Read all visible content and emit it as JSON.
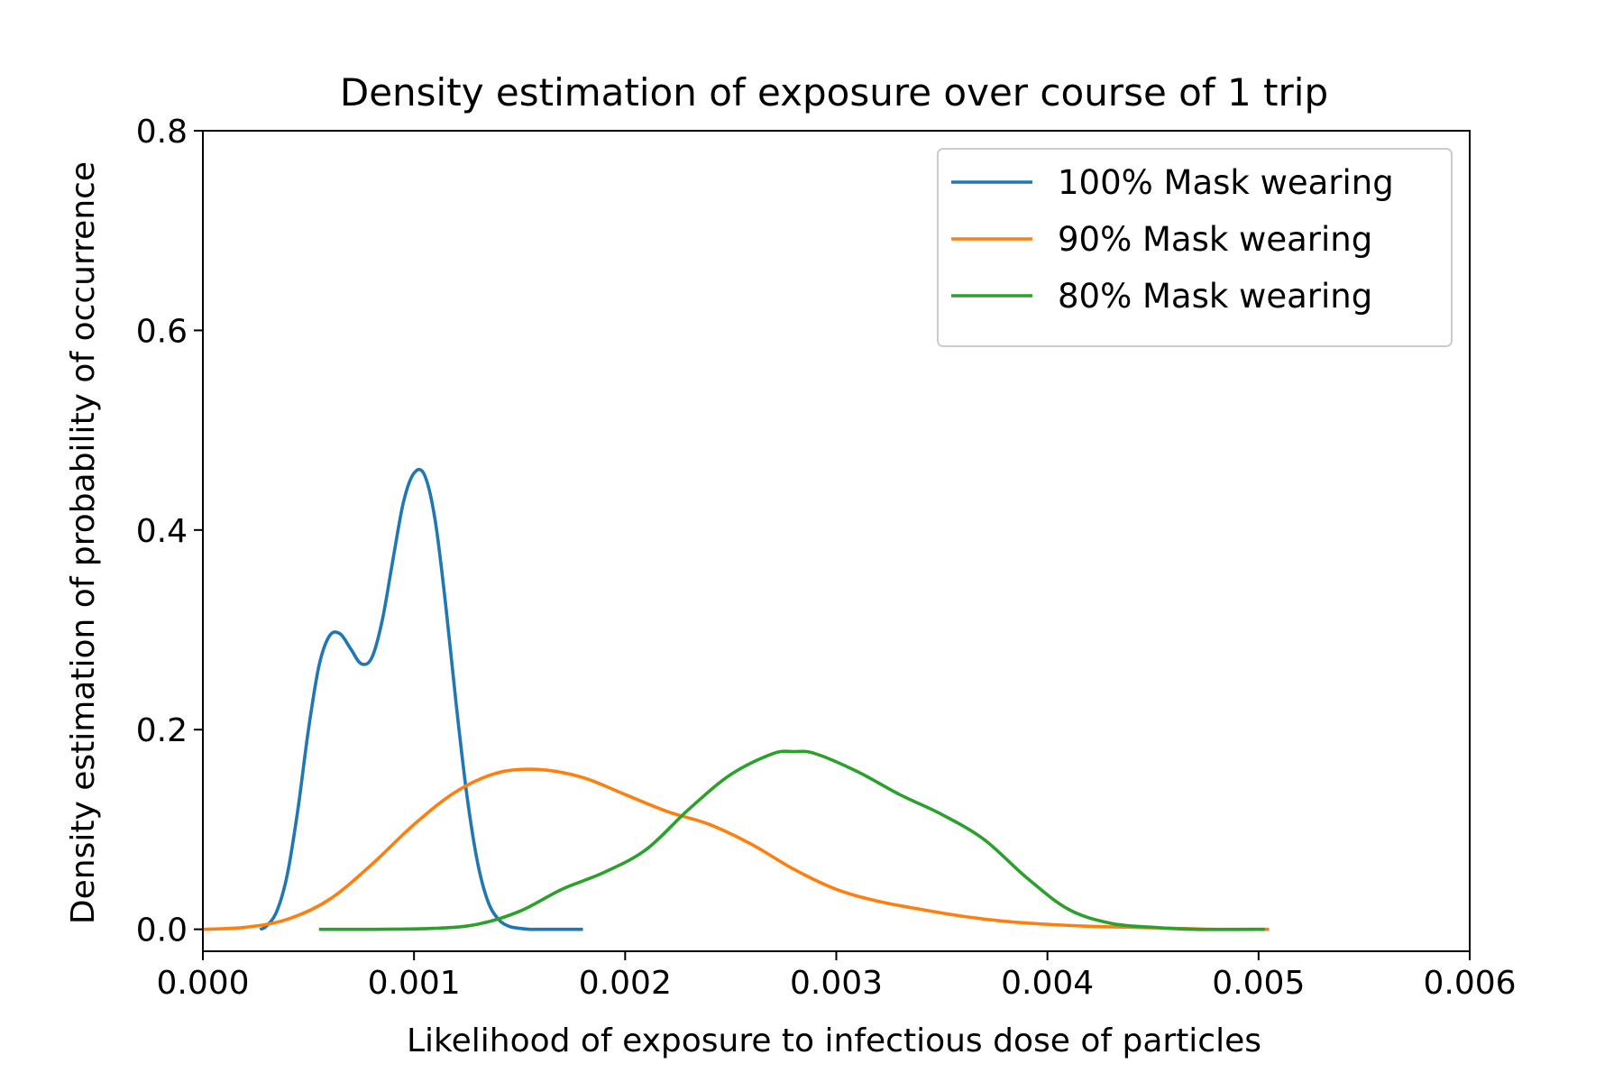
{
  "chart_data": {
    "type": "line",
    "title": "Density estimation of exposure over course of 1 trip",
    "xlabel": "Likelihood of exposure to infectious dose of particles",
    "ylabel": "Density estimation of probability of occurrence",
    "xlim": [
      0,
      0.006
    ],
    "ylim": [
      -0.022,
      0.8
    ],
    "xticks": [
      0.0,
      0.001,
      0.002,
      0.003,
      0.004,
      0.005,
      0.006
    ],
    "xtick_labels": [
      "0.000",
      "0.001",
      "0.002",
      "0.003",
      "0.004",
      "0.005",
      "0.006"
    ],
    "yticks": [
      0.0,
      0.2,
      0.4,
      0.6,
      0.8
    ],
    "ytick_labels": [
      "0.0",
      "0.2",
      "0.4",
      "0.6",
      "0.8"
    ],
    "grid": false,
    "legend_position": "top-right",
    "series": [
      {
        "name": "100% Mask wearing",
        "color": "#1f77b4",
        "x": [
          0.00027,
          0.0003,
          0.00035,
          0.0004,
          0.00045,
          0.0005,
          0.00055,
          0.0006,
          0.00065,
          0.0007,
          0.00075,
          0.0008,
          0.00085,
          0.0009,
          0.00095,
          0.001,
          0.00105,
          0.0011,
          0.00115,
          0.0012,
          0.00125,
          0.0013,
          0.00135,
          0.0014,
          0.00145,
          0.0015,
          0.00155,
          0.0016,
          0.00165,
          0.0017,
          0.0018
        ],
        "y": [
          0.0,
          0.003,
          0.018,
          0.055,
          0.12,
          0.2,
          0.264,
          0.294,
          0.296,
          0.281,
          0.266,
          0.272,
          0.31,
          0.37,
          0.428,
          0.457,
          0.455,
          0.41,
          0.325,
          0.225,
          0.135,
          0.068,
          0.028,
          0.01,
          0.003,
          0.001,
          0.0,
          0.0,
          0.0,
          0.0,
          0.0
        ]
      },
      {
        "name": "90% Mask wearing",
        "color": "#ff7f0e",
        "x": [
          0.0,
          0.0002,
          0.0004,
          0.0006,
          0.0008,
          0.001,
          0.0012,
          0.0014,
          0.0016,
          0.0018,
          0.002,
          0.0022,
          0.0024,
          0.0026,
          0.0028,
          0.003,
          0.0032,
          0.0034,
          0.0036,
          0.0038,
          0.004,
          0.0042,
          0.0044,
          0.0046,
          0.0048,
          0.00505
        ],
        "y": [
          0.0,
          0.002,
          0.01,
          0.03,
          0.065,
          0.105,
          0.138,
          0.157,
          0.16,
          0.152,
          0.135,
          0.118,
          0.105,
          0.085,
          0.06,
          0.04,
          0.028,
          0.02,
          0.013,
          0.008,
          0.005,
          0.003,
          0.002,
          0.001,
          0.0,
          0.0
        ]
      },
      {
        "name": "80% Mask wearing",
        "color": "#2ca02c",
        "x": [
          0.00055,
          0.0008,
          0.0011,
          0.0013,
          0.0015,
          0.0017,
          0.0019,
          0.0021,
          0.0023,
          0.0025,
          0.0027,
          0.0028,
          0.0029,
          0.0031,
          0.0033,
          0.0035,
          0.0037,
          0.0039,
          0.0041,
          0.0043,
          0.0045,
          0.0047,
          0.00503
        ],
        "y": [
          0.0,
          0.0,
          0.001,
          0.005,
          0.018,
          0.04,
          0.057,
          0.08,
          0.12,
          0.155,
          0.176,
          0.178,
          0.176,
          0.158,
          0.135,
          0.115,
          0.09,
          0.052,
          0.02,
          0.006,
          0.002,
          0.0,
          0.0
        ]
      }
    ]
  }
}
